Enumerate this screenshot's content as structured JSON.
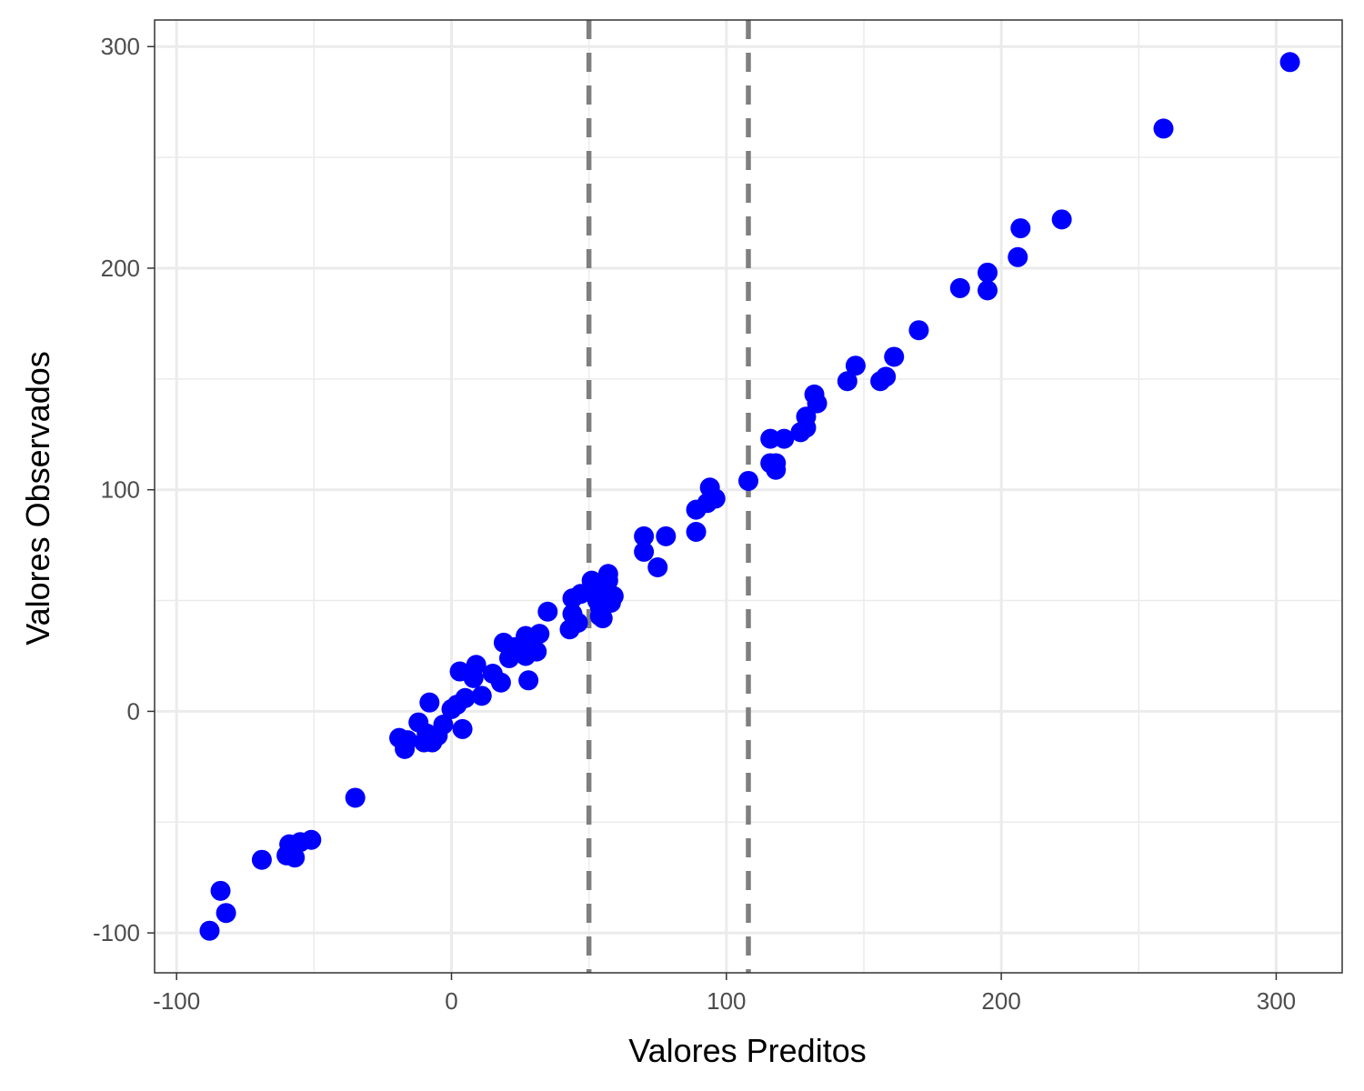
{
  "chart_data": {
    "type": "scatter",
    "xlabel": "Valores Preditos",
    "ylabel": "Valores Observados",
    "xlim": [
      -108,
      324
    ],
    "ylim": [
      -118,
      312
    ],
    "x_ticks": [
      -100,
      0,
      100,
      200,
      300
    ],
    "x_tick_labels": [
      "-100",
      "0",
      "100",
      "200",
      "300"
    ],
    "y_ticks": [
      -100,
      0,
      100,
      200,
      300
    ],
    "y_tick_labels": [
      "-100",
      "0",
      "100",
      "200",
      "300"
    ],
    "grid": true,
    "vlines": [
      50,
      108
    ],
    "point_color": "#0000ff",
    "vline_color": "#7f7f7f",
    "points": [
      {
        "x": -88,
        "y": -99
      },
      {
        "x": -84,
        "y": -81
      },
      {
        "x": -82,
        "y": -91
      },
      {
        "x": -69,
        "y": -67
      },
      {
        "x": -60,
        "y": -65
      },
      {
        "x": -59,
        "y": -60
      },
      {
        "x": -57,
        "y": -66
      },
      {
        "x": -55,
        "y": -59
      },
      {
        "x": -51,
        "y": -58
      },
      {
        "x": -35,
        "y": -39
      },
      {
        "x": -19,
        "y": -12
      },
      {
        "x": -17,
        "y": -17
      },
      {
        "x": -16,
        "y": -13
      },
      {
        "x": -12,
        "y": -5
      },
      {
        "x": -10,
        "y": -14
      },
      {
        "x": -9,
        "y": -10
      },
      {
        "x": -8,
        "y": 4
      },
      {
        "x": -7,
        "y": -14
      },
      {
        "x": -5,
        "y": -11
      },
      {
        "x": -3,
        "y": -6
      },
      {
        "x": 0,
        "y": 1
      },
      {
        "x": 2,
        "y": 3
      },
      {
        "x": 4,
        "y": -8
      },
      {
        "x": 5,
        "y": 6
      },
      {
        "x": 3,
        "y": 18
      },
      {
        "x": 8,
        "y": 15
      },
      {
        "x": 9,
        "y": 21
      },
      {
        "x": 11,
        "y": 7
      },
      {
        "x": 15,
        "y": 17
      },
      {
        "x": 18,
        "y": 13
      },
      {
        "x": 19,
        "y": 31
      },
      {
        "x": 21,
        "y": 24
      },
      {
        "x": 23,
        "y": 29
      },
      {
        "x": 25,
        "y": 28
      },
      {
        "x": 27,
        "y": 25
      },
      {
        "x": 27,
        "y": 34
      },
      {
        "x": 28,
        "y": 14
      },
      {
        "x": 29,
        "y": 31
      },
      {
        "x": 31,
        "y": 27
      },
      {
        "x": 32,
        "y": 35
      },
      {
        "x": 35,
        "y": 45
      },
      {
        "x": 43,
        "y": 37
      },
      {
        "x": 44,
        "y": 44
      },
      {
        "x": 44,
        "y": 51
      },
      {
        "x": 46,
        "y": 40
      },
      {
        "x": 47,
        "y": 53
      },
      {
        "x": 51,
        "y": 59
      },
      {
        "x": 52,
        "y": 56
      },
      {
        "x": 53,
        "y": 50
      },
      {
        "x": 54,
        "y": 47
      },
      {
        "x": 54,
        "y": 43
      },
      {
        "x": 55,
        "y": 42
      },
      {
        "x": 55,
        "y": 53
      },
      {
        "x": 56,
        "y": 57
      },
      {
        "x": 57,
        "y": 59
      },
      {
        "x": 57,
        "y": 62
      },
      {
        "x": 58,
        "y": 52
      },
      {
        "x": 58,
        "y": 49
      },
      {
        "x": 59,
        "y": 52
      },
      {
        "x": 70,
        "y": 72
      },
      {
        "x": 70,
        "y": 79
      },
      {
        "x": 75,
        "y": 65
      },
      {
        "x": 78,
        "y": 79
      },
      {
        "x": 89,
        "y": 81
      },
      {
        "x": 89,
        "y": 91
      },
      {
        "x": 93,
        "y": 94
      },
      {
        "x": 94,
        "y": 101
      },
      {
        "x": 96,
        "y": 96
      },
      {
        "x": 108,
        "y": 104
      },
      {
        "x": 116,
        "y": 112
      },
      {
        "x": 116,
        "y": 123
      },
      {
        "x": 118,
        "y": 109
      },
      {
        "x": 118,
        "y": 112
      },
      {
        "x": 121,
        "y": 123
      },
      {
        "x": 127,
        "y": 126
      },
      {
        "x": 129,
        "y": 128
      },
      {
        "x": 129,
        "y": 133
      },
      {
        "x": 132,
        "y": 143
      },
      {
        "x": 133,
        "y": 139
      },
      {
        "x": 144,
        "y": 149
      },
      {
        "x": 147,
        "y": 156
      },
      {
        "x": 156,
        "y": 149
      },
      {
        "x": 158,
        "y": 151
      },
      {
        "x": 161,
        "y": 160
      },
      {
        "x": 170,
        "y": 172
      },
      {
        "x": 185,
        "y": 191
      },
      {
        "x": 195,
        "y": 190
      },
      {
        "x": 195,
        "y": 198
      },
      {
        "x": 206,
        "y": 205
      },
      {
        "x": 207,
        "y": 218
      },
      {
        "x": 222,
        "y": 222
      },
      {
        "x": 259,
        "y": 263
      },
      {
        "x": 305,
        "y": 293
      }
    ]
  }
}
